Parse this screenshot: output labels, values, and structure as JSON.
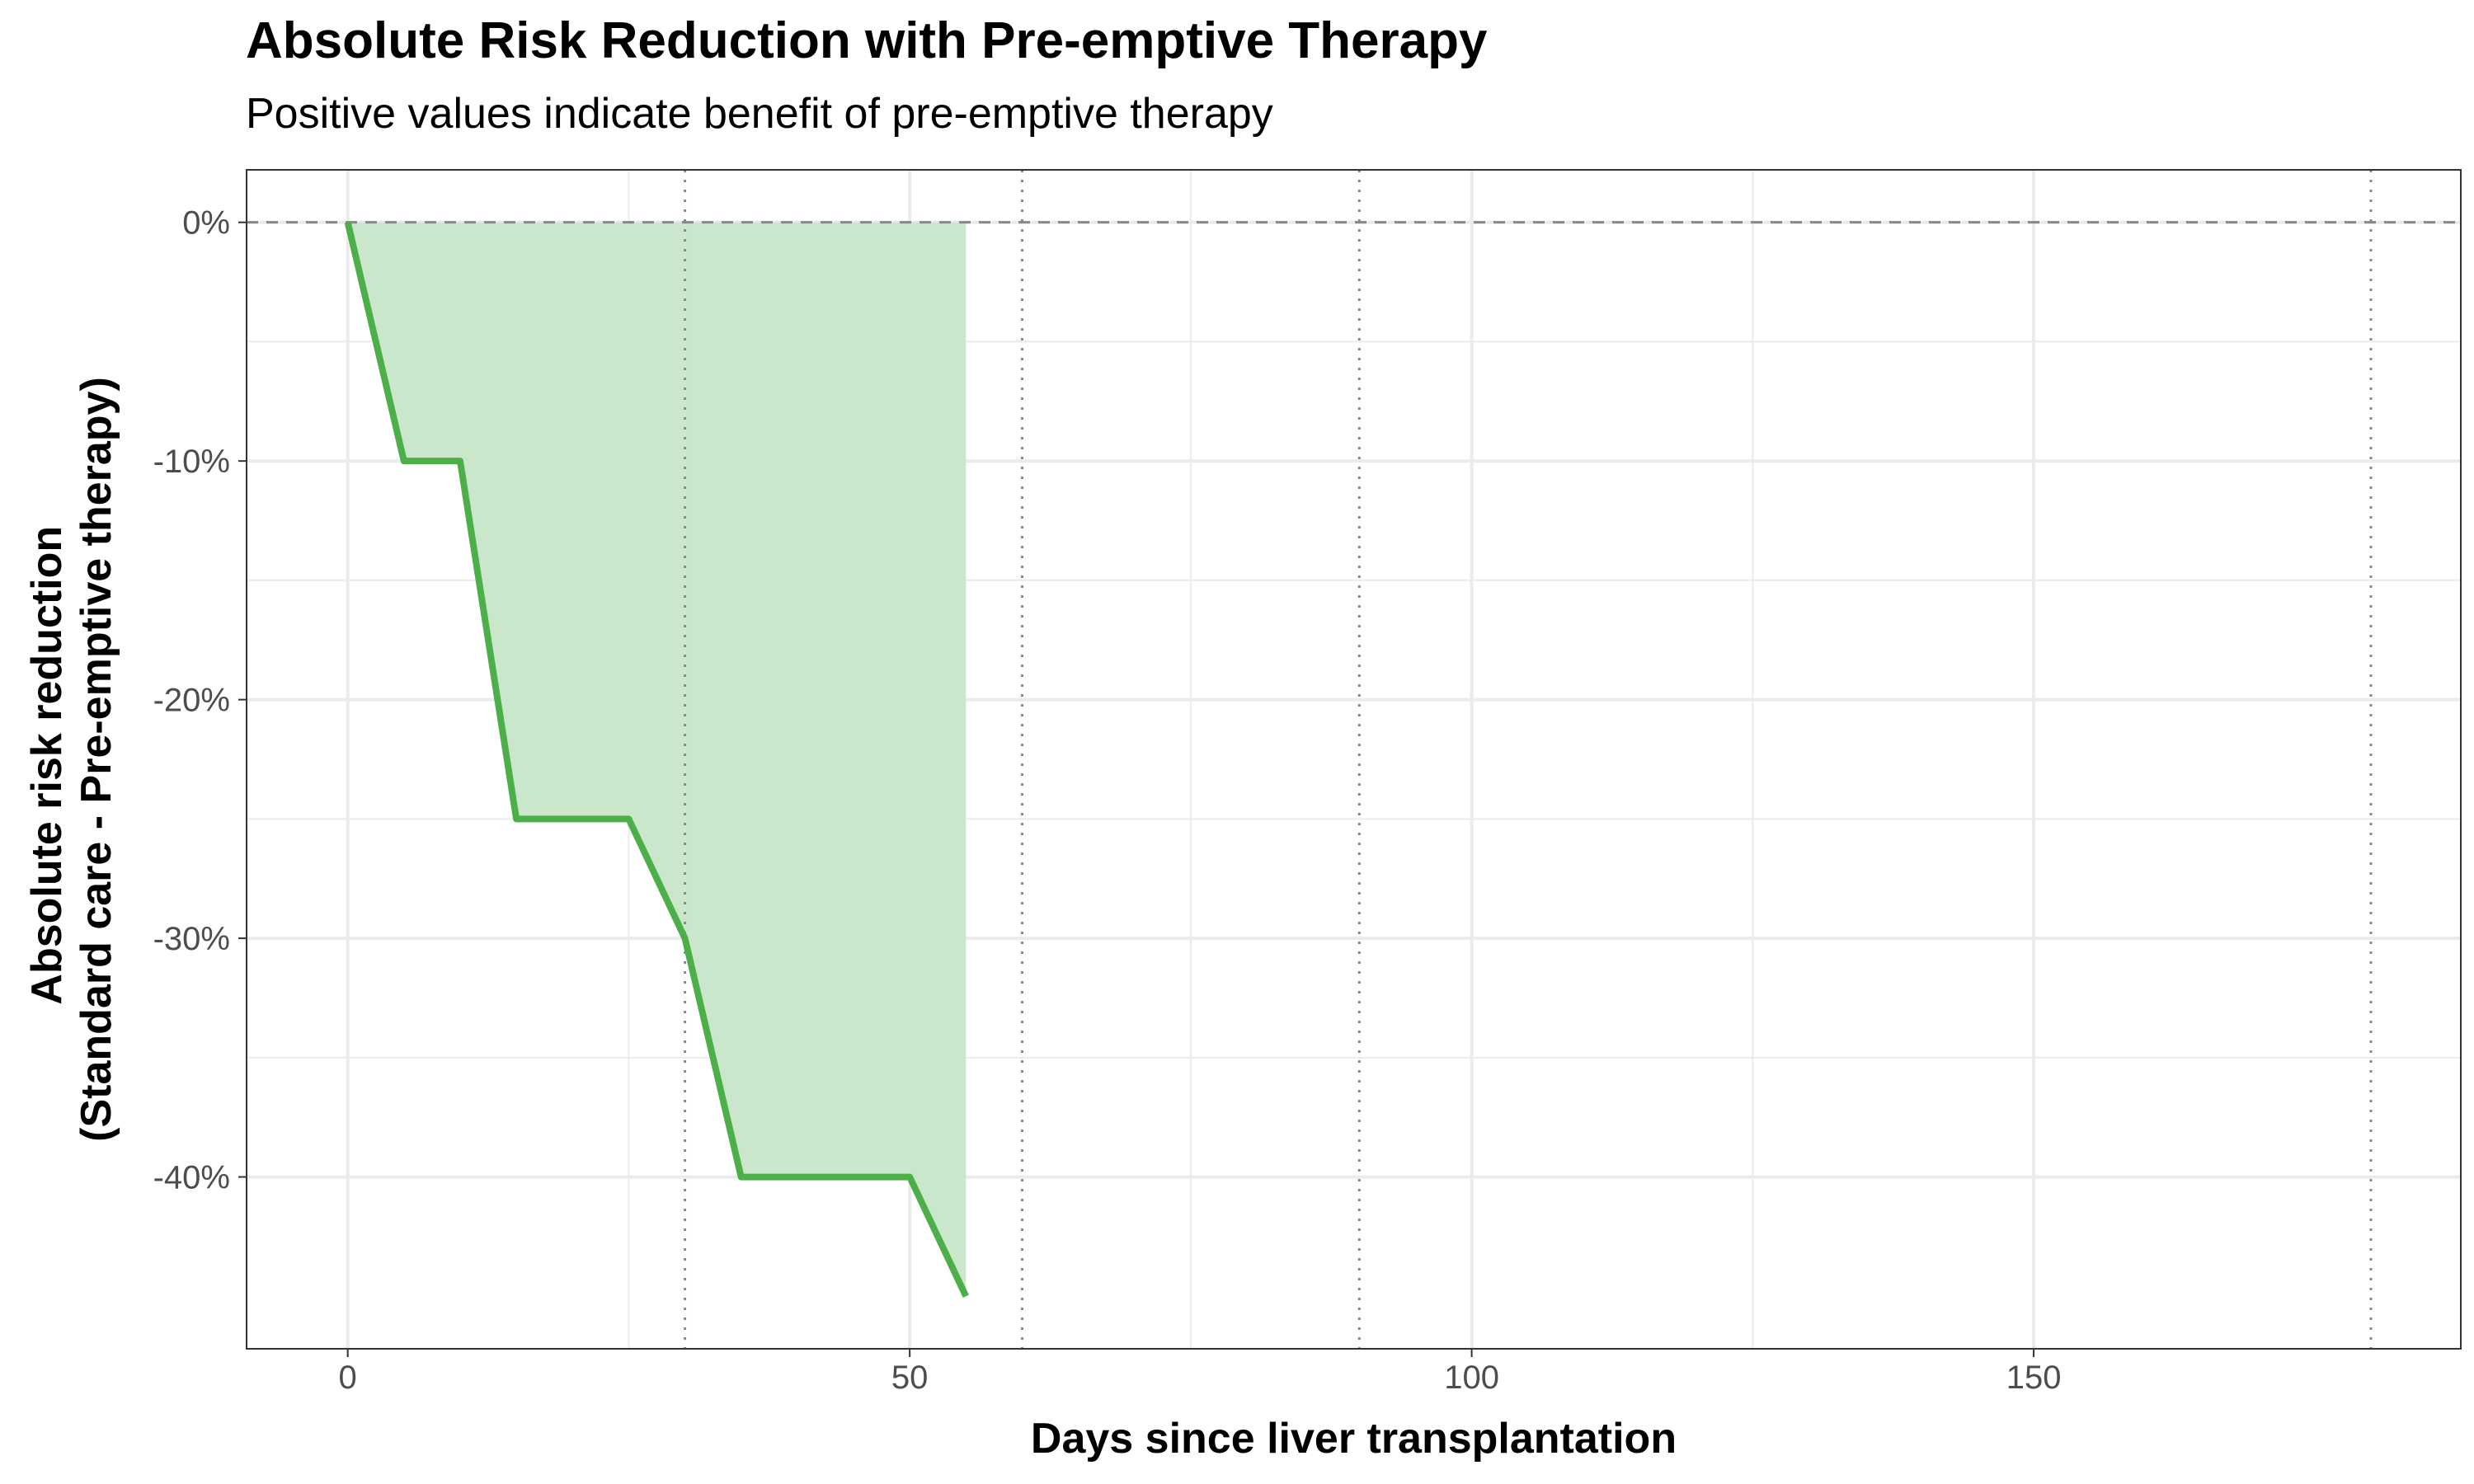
{
  "chart_data": {
    "type": "area",
    "title": "Absolute Risk Reduction with Pre-emptive Therapy",
    "subtitle": "Positive values indicate benefit of pre-emptive therapy",
    "xlabel": "Days since liver transplantation",
    "ylabel_lines": [
      "Absolute risk reduction",
      "(Standard care - Pre-emptive therapy)"
    ],
    "xlim": [
      -9,
      188
    ],
    "ylim": [
      -47.2,
      2.2
    ],
    "x_ticks": [
      0,
      50,
      100,
      150
    ],
    "x_tick_labels": [
      "0",
      "50",
      "100",
      "150"
    ],
    "y_ticks": [
      0,
      -10,
      -20,
      -30,
      -40
    ],
    "y_tick_labels": [
      "0%",
      "-10%",
      "-20%",
      "-30%",
      "-40%"
    ],
    "grid": true,
    "reference_hline": 0,
    "reference_vlines": [
      30,
      60,
      90,
      180
    ],
    "series": [
      {
        "x": [
          0,
          5,
          10,
          15,
          20,
          25,
          30,
          35,
          40,
          45,
          50,
          55
        ],
        "y": [
          0,
          -10,
          -10,
          -25,
          -25,
          -25,
          -30,
          -40,
          -40,
          -40,
          -40,
          -45
        ]
      }
    ],
    "colors": {
      "line": "#4daf4a",
      "fill": "#cae7cb",
      "grid": "#ebebeb",
      "reference": "#888888",
      "panel_border": "#333333"
    }
  }
}
